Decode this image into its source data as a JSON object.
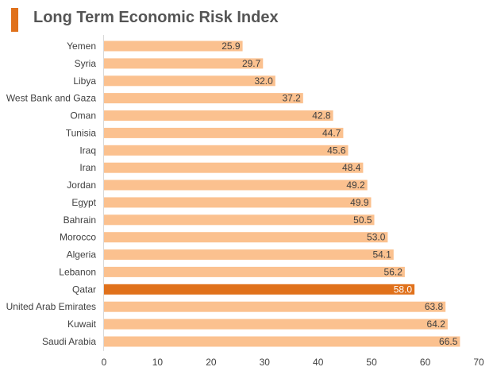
{
  "header": {
    "title": "Long Term Economic Risk Index"
  },
  "colors": {
    "accent": "#e0711b",
    "bar": "#fbc18f",
    "highlight_bar": "#e0711b",
    "title_text": "#555555"
  },
  "chart_data": {
    "type": "bar",
    "orientation": "horizontal",
    "title": "Long Term Economic Risk Index",
    "xlabel": "",
    "ylabel": "",
    "xlim": [
      0,
      70
    ],
    "x_ticks": [
      0,
      10,
      20,
      30,
      40,
      50,
      60,
      70
    ],
    "grid": false,
    "legend": "none",
    "highlight": "Qatar",
    "categories": [
      "Yemen",
      "Syria",
      "Libya",
      "West Bank and Gaza",
      "Oman",
      "Tunisia",
      "Iraq",
      "Iran",
      "Jordan",
      "Egypt",
      "Bahrain",
      "Morocco",
      "Algeria",
      "Lebanon",
      "Qatar",
      "United Arab Emirates",
      "Kuwait",
      "Saudi Arabia"
    ],
    "values": [
      25.9,
      29.7,
      32.0,
      37.2,
      42.8,
      44.7,
      45.6,
      48.4,
      49.2,
      49.9,
      50.5,
      53.0,
      54.1,
      56.2,
      58.0,
      63.8,
      64.2,
      66.5
    ],
    "value_labels": [
      "25.9",
      "29.7",
      "32.0",
      "37.2",
      "42.8",
      "44.7",
      "45.6",
      "48.4",
      "49.2",
      "49.9",
      "50.5",
      "53.0",
      "54.1",
      "56.2",
      "58.0",
      "63.8",
      "64.2",
      "66.5"
    ]
  }
}
